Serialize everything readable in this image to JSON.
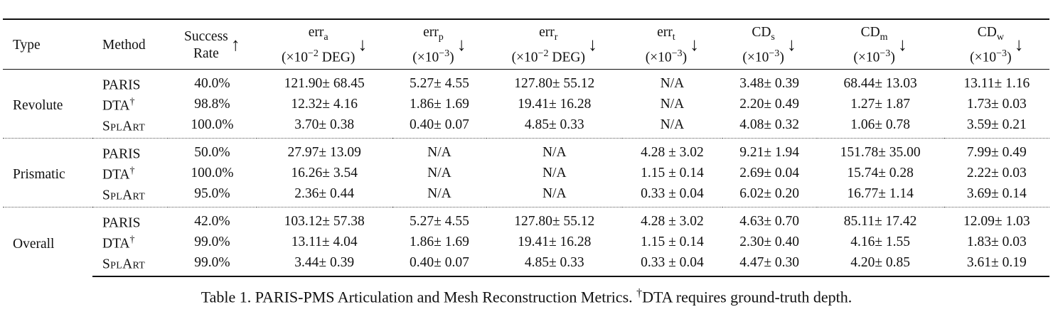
{
  "table": {
    "headers": {
      "type": "Type",
      "method": "Method",
      "success_line1": "Success",
      "success_line2": "Rate",
      "err_a_name": "err",
      "err_a_sub": "a",
      "err_a_unit": "(×10",
      "err_a_exp": "−2",
      "err_a_unit_tail": " DEG)",
      "err_p_name": "err",
      "err_p_sub": "p",
      "err_p_unit": "(×10",
      "err_p_exp": "−3",
      "err_p_unit_tail": ")",
      "err_r_name": "err",
      "err_r_sub": "r",
      "err_r_unit": "(×10",
      "err_r_exp": "−2",
      "err_r_unit_tail": " DEG)",
      "err_t_name": "err",
      "err_t_sub": "t",
      "err_t_unit": "(×10",
      "err_t_exp": "−3",
      "err_t_unit_tail": ")",
      "cd_s_name": "CD",
      "cd_s_sub": "s",
      "cd_s_unit": "(×10",
      "cd_s_exp": "−3",
      "cd_s_unit_tail": ")",
      "cd_m_name": "CD",
      "cd_m_sub": "m",
      "cd_m_unit": "(×10",
      "cd_m_exp": "−3",
      "cd_m_unit_tail": ")",
      "cd_w_name": "CD",
      "cd_w_sub": "w",
      "cd_w_unit": "(×10",
      "cd_w_exp": "−3",
      "cd_w_unit_tail": ")",
      "up_arrow": "↑",
      "down_arrow": "↓"
    },
    "groups": [
      {
        "type": "Revolute",
        "rows": [
          {
            "method": "PARIS",
            "method_sup": "",
            "success": "40.0%",
            "err_a": "121.90± 68.45",
            "err_p": "5.27± 4.55",
            "err_r": "127.80± 55.12",
            "err_t": "N/A",
            "cd_s": "3.48± 0.39",
            "cd_m": "68.44± 13.03",
            "cd_w": "13.11± 1.16"
          },
          {
            "method": "DTA",
            "method_sup": "†",
            "success": "98.8%",
            "err_a": "12.32± 4.16",
            "err_p": "1.86± 1.69",
            "err_r": "19.41± 16.28",
            "err_t": "N/A",
            "cd_s": "2.20± 0.49",
            "cd_m": "1.27± 1.87",
            "cd_w": "1.73± 0.03"
          },
          {
            "method": "SplArt",
            "method_sup": "",
            "success": "100.0%",
            "err_a": "3.70± 0.38",
            "err_p": "0.40± 0.07",
            "err_r": "4.85± 0.33",
            "err_t": "N/A",
            "cd_s": "4.08± 0.32",
            "cd_m": "1.06± 0.78",
            "cd_w": "3.59± 0.21"
          }
        ]
      },
      {
        "type": "Prismatic",
        "rows": [
          {
            "method": "PARIS",
            "method_sup": "",
            "success": "50.0%",
            "err_a": "27.97± 13.09",
            "err_p": "N/A",
            "err_r": "N/A",
            "err_t": "4.28 ± 3.02",
            "cd_s": "9.21± 1.94",
            "cd_m": "151.78± 35.00",
            "cd_w": "7.99± 0.49"
          },
          {
            "method": "DTA",
            "method_sup": "†",
            "success": "100.0%",
            "err_a": "16.26± 3.54",
            "err_p": "N/A",
            "err_r": "N/A",
            "err_t": "1.15 ± 0.14",
            "cd_s": "2.69± 0.04",
            "cd_m": "15.74± 0.28",
            "cd_w": "2.22± 0.03"
          },
          {
            "method": "SplArt",
            "method_sup": "",
            "success": "95.0%",
            "err_a": "2.36± 0.44",
            "err_p": "N/A",
            "err_r": "N/A",
            "err_t": "0.33 ± 0.04",
            "cd_s": "6.02± 0.20",
            "cd_m": "16.77± 1.14",
            "cd_w": "3.69± 0.14"
          }
        ]
      },
      {
        "type": "Overall",
        "rows": [
          {
            "method": "PARIS",
            "method_sup": "",
            "success": "42.0%",
            "err_a": "103.12± 57.38",
            "err_p": "5.27± 4.55",
            "err_r": "127.80± 55.12",
            "err_t": "4.28 ± 3.02",
            "cd_s": "4.63± 0.70",
            "cd_m": "85.11± 17.42",
            "cd_w": "12.09± 1.03"
          },
          {
            "method": "DTA",
            "method_sup": "†",
            "success": "99.0%",
            "err_a": "13.11± 4.04",
            "err_p": "1.86± 1.69",
            "err_r": "19.41± 16.28",
            "err_t": "1.15 ± 0.14",
            "cd_s": "2.30± 0.40",
            "cd_m": "4.16± 1.55",
            "cd_w": "1.83± 0.03"
          },
          {
            "method": "SplArt",
            "method_sup": "",
            "success": "99.0%",
            "err_a": "3.44± 0.39",
            "err_p": "0.40± 0.07",
            "err_r": "4.85± 0.33",
            "err_t": "0.33 ± 0.04",
            "cd_s": "4.47± 0.30",
            "cd_m": "4.20± 0.85",
            "cd_w": "3.61± 0.19"
          }
        ]
      }
    ]
  },
  "caption": {
    "lead": "Table 1. PARIS-PMS Articulation and Mesh Reconstruction Metrics. ",
    "dagger": "†",
    "tail": "DTA requires ground-truth depth."
  }
}
